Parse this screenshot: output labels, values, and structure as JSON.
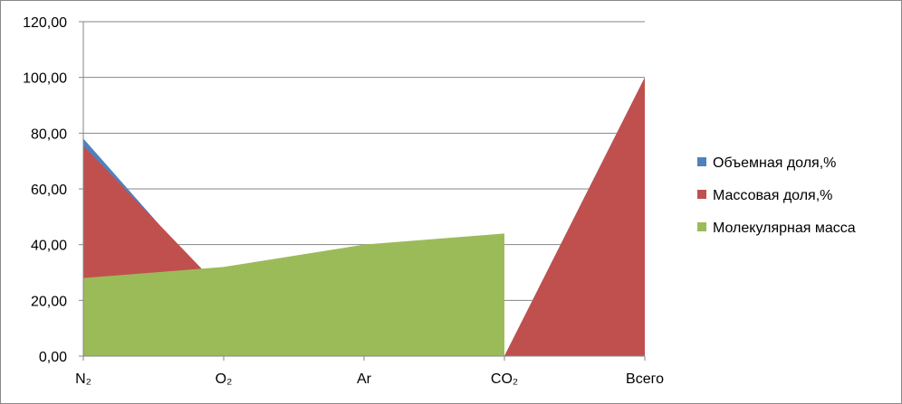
{
  "chart_data": {
    "type": "area",
    "title": "",
    "xlabel": "",
    "ylabel": "",
    "categories": [
      "N₂",
      "O₂",
      "Ar",
      "CO₂",
      "Всего"
    ],
    "ylim": [
      0,
      120
    ],
    "yticks": [
      "0,00",
      "20,00",
      "40,00",
      "60,00",
      "80,00",
      "100,00",
      "120,00"
    ],
    "grid": "horizontal",
    "legend_position": "right",
    "series": [
      {
        "name": "Объемная доля,%",
        "color": "#4F81BD",
        "values": [
          78.08,
          20.95,
          0.93,
          0.03,
          100
        ]
      },
      {
        "name": "Массовая доля,%",
        "color": "#C0504D",
        "values": [
          75.5,
          23.15,
          1.28,
          0.05,
          100
        ]
      },
      {
        "name": "Молекулярная масса",
        "color": "#9BBB59",
        "values": [
          28,
          32,
          40,
          44,
          null
        ]
      }
    ]
  }
}
